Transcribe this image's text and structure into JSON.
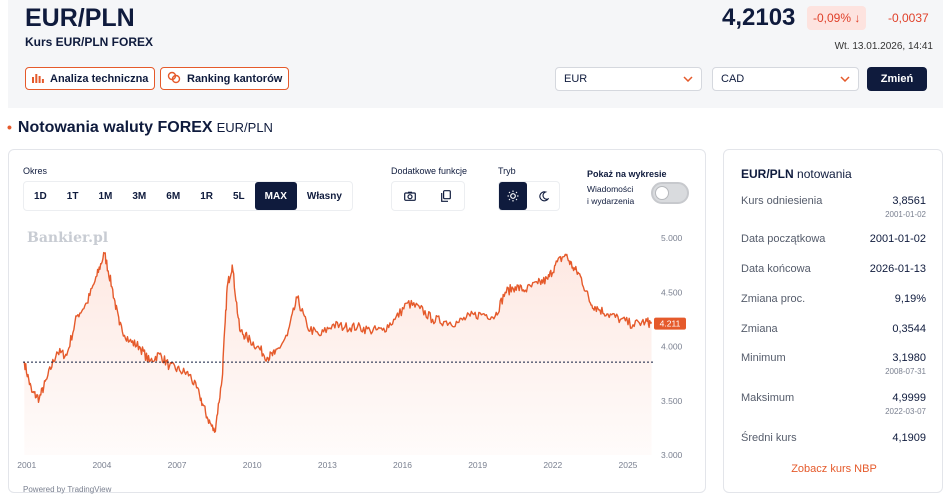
{
  "header": {
    "pair": "EUR/PLN",
    "subtitle": "Kurs EUR/PLN FOREX",
    "price": "4,2103",
    "change_pct": "-0,09% ↓",
    "change_abs": "-0,0037",
    "datetime": "Wt. 13.01.2026, 14:41",
    "btn_analysis": "Analiza techniczna",
    "btn_ranking": "Ranking kantorów",
    "select_from": "EUR",
    "select_to": "CAD",
    "btn_change": "Zmień"
  },
  "section": {
    "title": "Notowania waluty FOREX",
    "subtitle": "EUR/PLN"
  },
  "chart_controls": {
    "period_label": "Okres",
    "periods": [
      "1D",
      "1T",
      "1M",
      "3M",
      "6M",
      "1R",
      "5L",
      "MAX",
      "Własny"
    ],
    "active_period": "MAX",
    "extra_label": "Dodatkowe funkcje",
    "mode_label": "Tryb",
    "show_label": "Pokaż na wykresie",
    "news_label_1": "Wiadomości",
    "news_label_2": "i wydarzenia",
    "watermark": "Bankier.pl",
    "powered": "Powered by TradingView",
    "current_tag": "4.211"
  },
  "chart_data": {
    "type": "area",
    "x": [
      2001.0,
      2001.3,
      2001.6,
      2001.9,
      2002.3,
      2002.7,
      2003.1,
      2003.5,
      2003.9,
      2004.2,
      2004.5,
      2004.8,
      2005.2,
      2005.6,
      2006.0,
      2006.4,
      2006.8,
      2007.2,
      2007.6,
      2008.0,
      2008.3,
      2008.6,
      2008.9,
      2009.1,
      2009.3,
      2009.6,
      2009.9,
      2010.3,
      2010.7,
      2011.0,
      2011.5,
      2011.9,
      2012.3,
      2012.8,
      2013.3,
      2013.8,
      2014.3,
      2014.8,
      2015.3,
      2015.8,
      2016.3,
      2016.8,
      2017.3,
      2017.8,
      2018.3,
      2018.8,
      2019.3,
      2019.8,
      2020.2,
      2020.6,
      2021.0,
      2021.5,
      2021.9,
      2022.2,
      2022.6,
      2022.9,
      2023.2,
      2023.6,
      2023.9,
      2024.3,
      2024.8,
      2025.3,
      2025.8,
      2026.04
    ],
    "y": [
      3.86,
      3.58,
      3.52,
      3.7,
      3.95,
      3.92,
      4.28,
      4.4,
      4.65,
      4.86,
      4.55,
      4.2,
      4.05,
      4.0,
      3.86,
      3.93,
      3.82,
      3.78,
      3.74,
      3.55,
      3.35,
      3.21,
      3.7,
      4.55,
      4.75,
      4.15,
      4.08,
      4.0,
      3.9,
      3.93,
      4.1,
      4.45,
      4.18,
      4.1,
      4.2,
      4.18,
      4.18,
      4.15,
      4.15,
      4.25,
      4.4,
      4.35,
      4.25,
      4.23,
      4.22,
      4.28,
      4.3,
      4.28,
      4.5,
      4.55,
      4.52,
      4.58,
      4.62,
      4.75,
      4.85,
      4.73,
      4.65,
      4.4,
      4.35,
      4.3,
      4.25,
      4.2,
      4.23,
      4.211
    ],
    "ylim": [
      3.0,
      5.0
    ],
    "yticks": [
      "5.000",
      "4.500",
      "4.000",
      "3.500",
      "3.000"
    ],
    "xticks": [
      "2001",
      "2004",
      "2007",
      "2010",
      "2013",
      "2016",
      "2019",
      "2022",
      "2025"
    ],
    "reference_line": 3.8561,
    "grid": false,
    "line_color": "#e55a2b",
    "fill_color": "#fde6df"
  },
  "stats": {
    "title_bold": "EUR/PLN",
    "title_rest": "notowania",
    "rows": [
      {
        "label": "Kurs odniesienia",
        "value": "3,8561",
        "date": "2001-01-02"
      },
      {
        "label": "Data początkowa",
        "value": "2001-01-02",
        "date": ""
      },
      {
        "label": "Data końcowa",
        "value": "2026-01-13",
        "date": ""
      },
      {
        "label": "Zmiana proc.",
        "value": "9,19%",
        "date": ""
      },
      {
        "label": "Zmiana",
        "value": "0,3544",
        "date": ""
      },
      {
        "label": "Minimum",
        "value": "3,1980",
        "date": "2008-07-31"
      },
      {
        "label": "Maksimum",
        "value": "4,9999",
        "date": "2022-03-07"
      },
      {
        "label": "Średni kurs",
        "value": "4,1909",
        "date": ""
      }
    ],
    "nbp_link": "Zobacz kurs NBP"
  },
  "colors": {
    "navy": "#0f1b3d",
    "accent": "#e55a2b",
    "negative": "#e0412a"
  }
}
